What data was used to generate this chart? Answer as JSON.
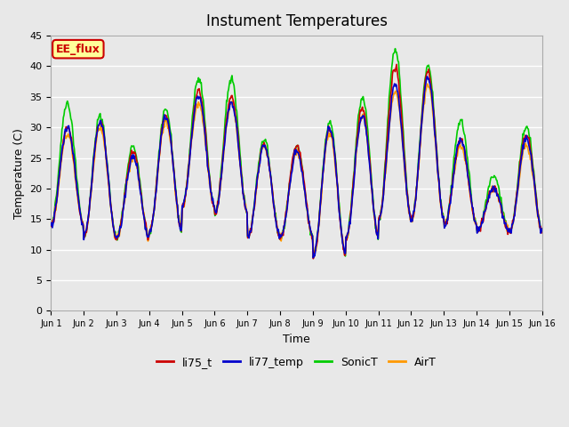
{
  "title": "Instument Temperatures",
  "ylabel": "Temperature (C)",
  "xlabel": "Time",
  "ylim": [
    0,
    45
  ],
  "xlim": [
    0,
    15
  ],
  "background_color": "#e8e8e8",
  "plot_bg_color": "#e8e8e8",
  "series_colors": {
    "li75_t": "#cc0000",
    "li77_temp": "#0000cc",
    "SonicT": "#00cc00",
    "AirT": "#ff9900"
  },
  "annotation_text": "EE_flux",
  "annotation_color": "#cc0000",
  "annotation_bg": "#ffff99",
  "annotation_border": "#cc0000",
  "tick_labels": [
    "Jun 1",
    "Jun 2",
    "Jun 3",
    "Jun 4",
    "Jun 5",
    "Jun 6",
    "Jun 7",
    "Jun 8",
    "Jun 9",
    "Jun 10",
    "Jun 11",
    "Jun 12",
    "Jun 13",
    "Jun 14",
    "Jun 15",
    "Jun 16"
  ],
  "daily_mins": [
    14,
    12,
    12,
    13,
    17,
    16,
    12,
    12,
    9,
    12,
    15,
    15,
    14,
    13,
    13,
    15
  ],
  "daily_maxs_li75": [
    30,
    31,
    26,
    32,
    36,
    35,
    27,
    27,
    30,
    33,
    40,
    39,
    28,
    20,
    29,
    29
  ],
  "daily_maxs_li77": [
    30,
    31,
    25,
    32,
    35,
    34,
    27,
    26,
    30,
    32,
    37,
    38,
    28,
    20,
    28,
    28
  ],
  "daily_maxs_sonic": [
    34,
    32,
    27,
    33,
    38,
    38,
    28,
    27,
    31,
    35,
    43,
    40,
    31,
    22,
    30,
    30
  ],
  "daily_maxs_air": [
    29,
    30,
    25,
    31,
    34,
    34,
    27,
    26,
    29,
    32,
    36,
    37,
    27,
    20,
    27,
    27
  ],
  "points_per_day": 48,
  "line_width": 1.2
}
